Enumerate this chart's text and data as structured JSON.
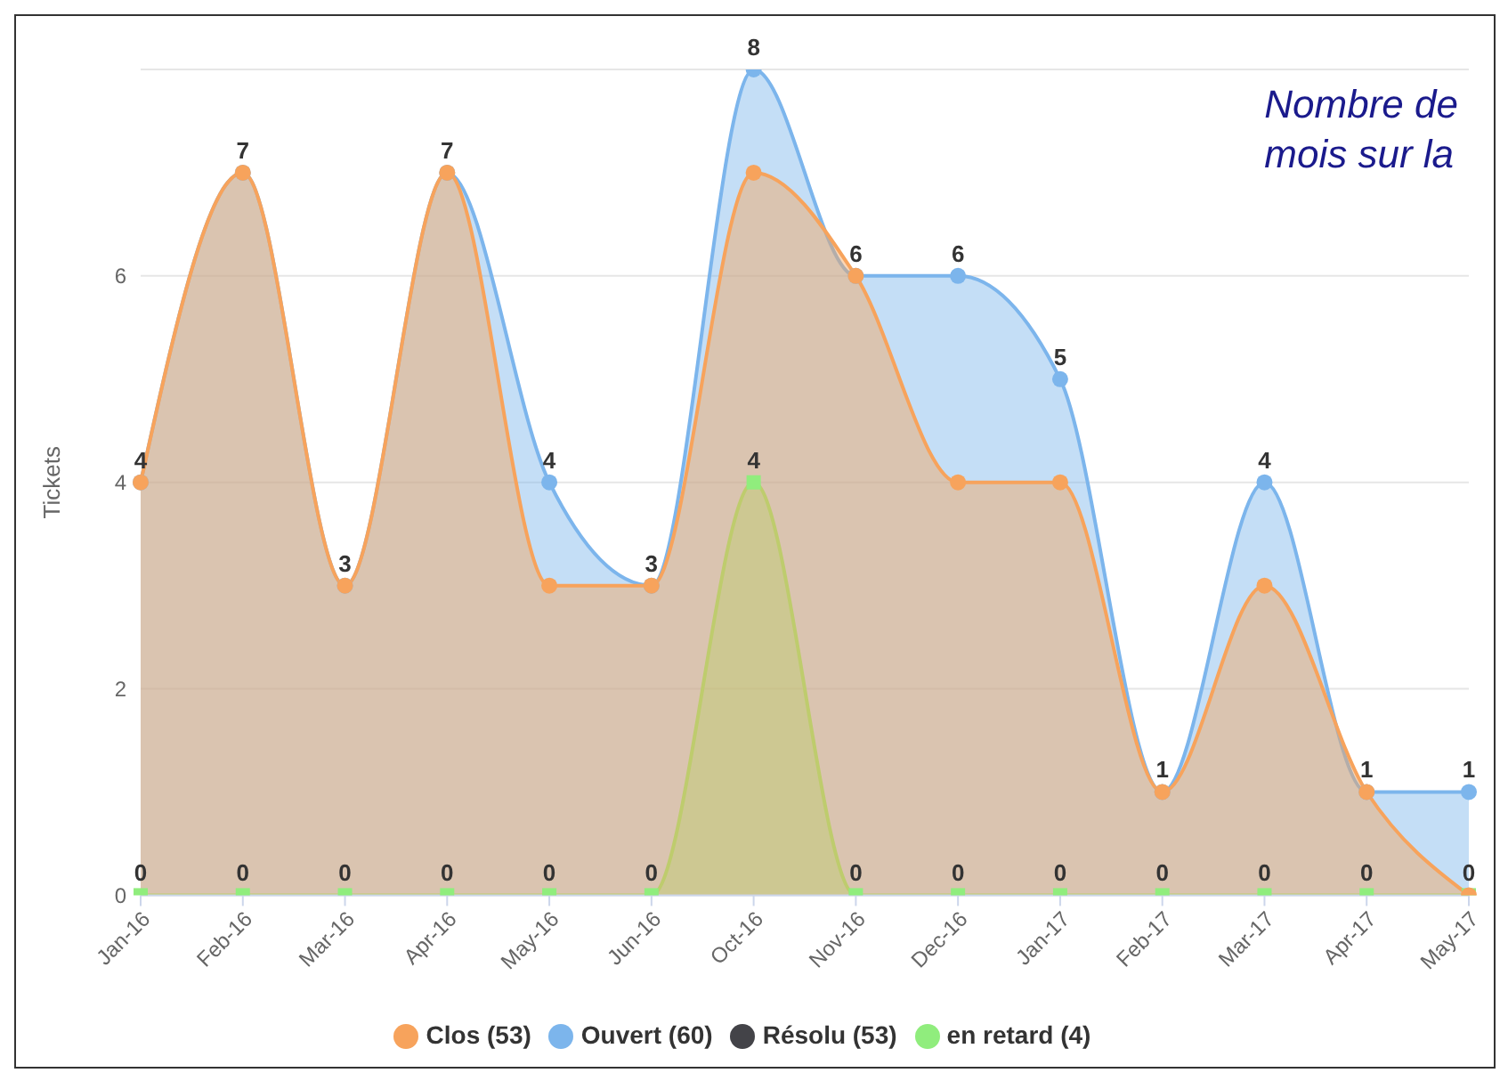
{
  "chart_data": {
    "type": "area",
    "ylabel": "Tickets",
    "categories": [
      "Jan-16",
      "Feb-16",
      "Mar-16",
      "Apr-16",
      "May-16",
      "Jun-16",
      "Oct-16",
      "Nov-16",
      "Dec-16",
      "Jan-17",
      "Feb-17",
      "Mar-17",
      "Apr-17",
      "May-17"
    ],
    "series": [
      {
        "name": "Ouvert (60)",
        "color": "#7cb5ec",
        "marker": "circle",
        "values": [
          4,
          7,
          3,
          7,
          4,
          3,
          8,
          6,
          6,
          5,
          1,
          4,
          1,
          1
        ],
        "value_labels": [
          "4",
          "7",
          "3",
          "7",
          "4",
          "3",
          "8",
          "6",
          "6",
          "5",
          "1",
          "4",
          "1",
          "1"
        ]
      },
      {
        "name": "Résolu (53)",
        "color": "#434348",
        "marker": "circle",
        "values": [
          null,
          null,
          null,
          null,
          null,
          null,
          null,
          null,
          null,
          null,
          null,
          null,
          null,
          null
        ]
      },
      {
        "name": "en retard (4)",
        "color": "#90ed7d",
        "marker": "square",
        "values": [
          0,
          0,
          0,
          0,
          0,
          0,
          4,
          0,
          0,
          0,
          0,
          0,
          0,
          0
        ],
        "value_labels": [
          "0",
          "0",
          "0",
          "0",
          "0",
          "0",
          "4",
          "0",
          "0",
          "0",
          "0",
          "0",
          "0",
          "0"
        ]
      },
      {
        "name": "Clos (53)",
        "color": "#f7a35c",
        "marker": "circle",
        "values": [
          4,
          7,
          3,
          7,
          3,
          3,
          7,
          6,
          4,
          4,
          1,
          3,
          1,
          0
        ]
      }
    ],
    "ylim": [
      0,
      8
    ],
    "yticks": [
      0,
      2,
      4,
      6
    ],
    "grid": "y",
    "legend": "bottom",
    "annotations": [
      "Nombre de",
      "mois sur la"
    ]
  }
}
